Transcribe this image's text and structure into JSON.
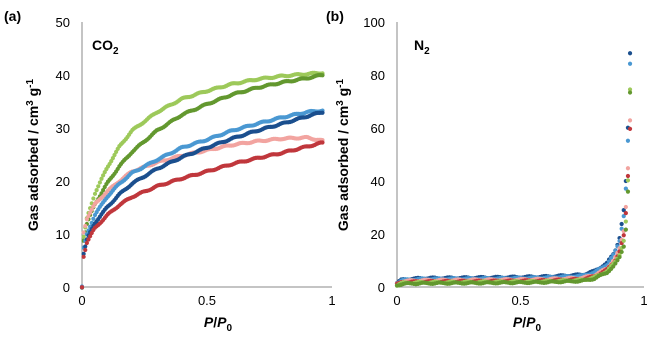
{
  "chart_data": [
    {
      "type": "scatter",
      "panel_label": "(a)",
      "annotation": {
        "base": "CO",
        "sub": "2"
      },
      "xlabel": {
        "p": "P",
        "slash": "/",
        "p0": "P",
        "p0_sub": "0"
      },
      "ylabel": {
        "text": "Gas adsorbed / cm",
        "sup1": "3",
        "mid": " g",
        "sup2": "-1"
      },
      "xlim": [
        0,
        1
      ],
      "ylim": [
        0,
        50
      ],
      "xticks": [
        "0",
        "0.5",
        "1"
      ],
      "xtick_values": [
        0,
        0.5,
        1
      ],
      "yticks": [
        "0",
        "10",
        "20",
        "30",
        "40",
        "50"
      ],
      "ytick_values": [
        0,
        10,
        20,
        30,
        40,
        50
      ],
      "grid": false,
      "series": [
        {
          "color": "#9dc95a",
          "curve": [
            [
              0,
              0
            ],
            [
              0.005,
              9
            ],
            [
              0.02,
              13
            ],
            [
              0.05,
              17.5
            ],
            [
              0.1,
              22.5
            ],
            [
              0.15,
              26.5
            ],
            [
              0.2,
              29.5
            ],
            [
              0.3,
              33
            ],
            [
              0.4,
              35.5
            ],
            [
              0.5,
              37
            ],
            [
              0.6,
              38.3
            ],
            [
              0.7,
              39.2
            ],
            [
              0.8,
              39.8
            ],
            [
              0.9,
              40.2
            ],
            [
              0.96,
              40.4
            ]
          ]
        },
        {
          "color": "#63982f",
          "curve": [
            [
              0,
              0
            ],
            [
              0.005,
              8.5
            ],
            [
              0.02,
              12
            ],
            [
              0.05,
              15.5
            ],
            [
              0.1,
              19.5
            ],
            [
              0.15,
              22.8
            ],
            [
              0.2,
              25.5
            ],
            [
              0.3,
              29.5
            ],
            [
              0.4,
              32.5
            ],
            [
              0.5,
              34.5
            ],
            [
              0.6,
              36.3
            ],
            [
              0.7,
              37.6
            ],
            [
              0.8,
              38.6
            ],
            [
              0.9,
              39.4
            ],
            [
              0.96,
              40
            ]
          ]
        },
        {
          "color": "#f2a4a0",
          "curve": [
            [
              0,
              0
            ],
            [
              0.005,
              10
            ],
            [
              0.02,
              13
            ],
            [
              0.05,
              15.5
            ],
            [
              0.1,
              18
            ],
            [
              0.15,
              20
            ],
            [
              0.2,
              21.8
            ],
            [
              0.3,
              23.5
            ],
            [
              0.4,
              24.8
            ],
            [
              0.5,
              25.8
            ],
            [
              0.6,
              26.8
            ],
            [
              0.7,
              27.5
            ],
            [
              0.8,
              28
            ],
            [
              0.9,
              28.2
            ],
            [
              0.96,
              27.6
            ]
          ]
        },
        {
          "color": "#4a98d2",
          "curve": [
            [
              0,
              0
            ],
            [
              0.005,
              7
            ],
            [
              0.02,
              10
            ],
            [
              0.05,
              13.5
            ],
            [
              0.1,
              17
            ],
            [
              0.15,
              19.5
            ],
            [
              0.2,
              21.5
            ],
            [
              0.3,
              24
            ],
            [
              0.4,
              26.3
            ],
            [
              0.5,
              27.8
            ],
            [
              0.6,
              29.5
            ],
            [
              0.7,
              30.8
            ],
            [
              0.8,
              32
            ],
            [
              0.9,
              33
            ],
            [
              0.96,
              33.3
            ]
          ]
        },
        {
          "color": "#1b4f8e",
          "curve": [
            [
              0,
              0
            ],
            [
              0.005,
              6
            ],
            [
              0.02,
              9
            ],
            [
              0.05,
              12
            ],
            [
              0.1,
              15
            ],
            [
              0.15,
              17.5
            ],
            [
              0.2,
              19.5
            ],
            [
              0.3,
              22.3
            ],
            [
              0.4,
              24.5
            ],
            [
              0.5,
              26.3
            ],
            [
              0.6,
              28
            ],
            [
              0.7,
              29.5
            ],
            [
              0.8,
              30.8
            ],
            [
              0.9,
              32.2
            ],
            [
              0.96,
              33
            ]
          ]
        },
        {
          "color": "#c0373c",
          "curve": [
            [
              0,
              0
            ],
            [
              0.005,
              5.5
            ],
            [
              0.02,
              8.5
            ],
            [
              0.05,
              11
            ],
            [
              0.1,
              13.5
            ],
            [
              0.15,
              15.5
            ],
            [
              0.2,
              17
            ],
            [
              0.3,
              19
            ],
            [
              0.4,
              20.5
            ],
            [
              0.5,
              21.8
            ],
            [
              0.6,
              23.2
            ],
            [
              0.7,
              24.3
            ],
            [
              0.8,
              25.3
            ],
            [
              0.9,
              26.5
            ],
            [
              0.96,
              27.2
            ]
          ]
        }
      ]
    },
    {
      "type": "scatter",
      "panel_label": "(b)",
      "annotation": {
        "base": "N",
        "sub": "2"
      },
      "xlabel": {
        "p": "P",
        "slash": "/",
        "p0": "P",
        "p0_sub": "0"
      },
      "ylabel": {
        "text": "Gas adsorbed / cm",
        "sup1": "3",
        "mid": " g",
        "sup2": "-1"
      },
      "xlim": [
        0,
        1
      ],
      "ylim": [
        0,
        100
      ],
      "xticks": [
        "0",
        "0.5",
        "1"
      ],
      "xtick_values": [
        0,
        0.5,
        1
      ],
      "yticks": [
        "0",
        "20",
        "40",
        "60",
        "80",
        "100"
      ],
      "ytick_values": [
        0,
        20,
        40,
        60,
        80,
        100
      ],
      "grid": false,
      "series": [
        {
          "color": "#1b4f8e",
          "curve": [
            [
              0,
              1.5
            ],
            [
              0.02,
              2.8
            ],
            [
              0.1,
              3.3
            ],
            [
              0.4,
              3.6
            ],
            [
              0.6,
              3.9
            ],
            [
              0.75,
              4.6
            ],
            [
              0.8,
              6
            ],
            [
              0.85,
              9
            ],
            [
              0.88,
              13
            ],
            [
              0.9,
              18
            ],
            [
              0.92,
              30
            ],
            [
              0.93,
              45
            ],
            [
              0.935,
              60
            ],
            [
              0.94,
              75
            ],
            [
              0.945,
              94
            ]
          ]
        },
        {
          "color": "#4a98d2",
          "curve": [
            [
              0,
              1.5
            ],
            [
              0.02,
              2.6
            ],
            [
              0.1,
              3
            ],
            [
              0.4,
              3.2
            ],
            [
              0.6,
              3.5
            ],
            [
              0.75,
              4.2
            ],
            [
              0.8,
              5.5
            ],
            [
              0.85,
              8.5
            ],
            [
              0.88,
              12.5
            ],
            [
              0.9,
              17
            ],
            [
              0.92,
              28
            ],
            [
              0.93,
              42
            ],
            [
              0.935,
              55
            ],
            [
              0.94,
              70
            ],
            [
              0.945,
              90
            ]
          ]
        },
        {
          "color": "#f2a4a0",
          "curve": [
            [
              0,
              1.2
            ],
            [
              0.02,
              2.2
            ],
            [
              0.1,
              2.5
            ],
            [
              0.4,
              2.7
            ],
            [
              0.6,
              2.9
            ],
            [
              0.75,
              3.4
            ],
            [
              0.8,
              4.5
            ],
            [
              0.85,
              7
            ],
            [
              0.88,
              10.5
            ],
            [
              0.9,
              14
            ],
            [
              0.92,
              22
            ],
            [
              0.93,
              35
            ],
            [
              0.935,
              45
            ],
            [
              0.94,
              58
            ],
            [
              0.945,
              65
            ]
          ]
        },
        {
          "color": "#c0373c",
          "curve": [
            [
              0,
              1
            ],
            [
              0.02,
              1.8
            ],
            [
              0.1,
              2
            ],
            [
              0.4,
              2.2
            ],
            [
              0.6,
              2.4
            ],
            [
              0.75,
              2.9
            ],
            [
              0.8,
              4
            ],
            [
              0.85,
              6.5
            ],
            [
              0.88,
              9.5
            ],
            [
              0.9,
              13
            ],
            [
              0.92,
              20
            ],
            [
              0.93,
              32
            ],
            [
              0.935,
              42
            ],
            [
              0.94,
              55
            ],
            [
              0.945,
              62
            ]
          ]
        },
        {
          "color": "#9dc95a",
          "curve": [
            [
              0,
              0.8
            ],
            [
              0.02,
              1.5
            ],
            [
              0.1,
              1.7
            ],
            [
              0.4,
              1.9
            ],
            [
              0.6,
              2.1
            ],
            [
              0.75,
              2.6
            ],
            [
              0.8,
              3.6
            ],
            [
              0.85,
              6
            ],
            [
              0.88,
              9
            ],
            [
              0.9,
              12
            ],
            [
              0.92,
              18
            ],
            [
              0.93,
              28
            ],
            [
              0.935,
              40
            ],
            [
              0.94,
              52
            ],
            [
              0.945,
              84
            ]
          ]
        },
        {
          "color": "#63982f",
          "curve": [
            [
              0,
              0.6
            ],
            [
              0.02,
              1.2
            ],
            [
              0.1,
              1.4
            ],
            [
              0.4,
              1.6
            ],
            [
              0.6,
              1.8
            ],
            [
              0.75,
              2.3
            ],
            [
              0.8,
              3.2
            ],
            [
              0.85,
              5.5
            ],
            [
              0.88,
              8
            ],
            [
              0.9,
              11
            ],
            [
              0.92,
              16
            ],
            [
              0.93,
              25
            ],
            [
              0.935,
              36
            ],
            [
              0.94,
              48
            ],
            [
              0.945,
              84
            ]
          ]
        }
      ]
    }
  ]
}
